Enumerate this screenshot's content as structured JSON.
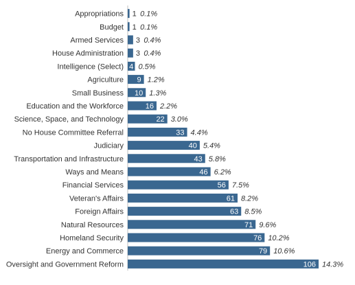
{
  "chart_data": {
    "type": "bar",
    "orientation": "horizontal",
    "categories": [
      "Appropriations",
      "Budget",
      "Armed Services",
      "House Administration",
      "Intelligence (Select)",
      "Agriculture",
      "Small Business",
      "Education and the Workforce",
      "Science, Space, and Technology",
      "No House Committee Referral",
      "Judiciary",
      "Transportation and Infrastructure",
      "Ways and Means",
      "Financial Services",
      "Veteran's Affairs",
      "Foreign Affairs",
      "Natural Resources",
      "Homeland Security",
      "Energy and Commerce",
      "Oversight and Government Reform"
    ],
    "values": [
      1,
      1,
      3,
      3,
      4,
      9,
      10,
      16,
      22,
      33,
      40,
      43,
      46,
      56,
      61,
      63,
      71,
      76,
      79,
      106
    ],
    "percent_labels": [
      "0.1%",
      "0.1%",
      "0.4%",
      "0.4%",
      "0.5%",
      "1.2%",
      "1.3%",
      "2.2%",
      "3.0%",
      "4.4%",
      "5.4%",
      "5.8%",
      "6.2%",
      "7.5%",
      "8.2%",
      "8.5%",
      "9.6%",
      "10.2%",
      "10.6%",
      "14.3%"
    ],
    "bar_color": "#3a6790",
    "xlim": [
      0,
      106
    ],
    "grid": false,
    "legend": "none"
  }
}
